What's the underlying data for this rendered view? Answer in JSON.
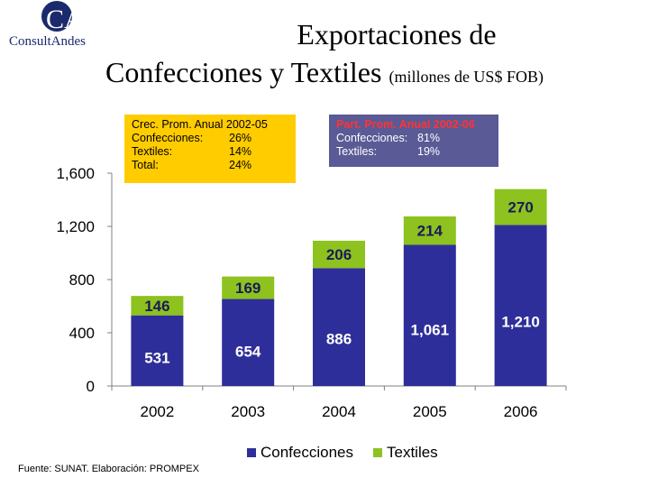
{
  "logo": {
    "initials": "CA",
    "name": "ConsultAndes"
  },
  "title": {
    "line1": "Exportaciones de",
    "line2": "Confecciones y Textiles",
    "line2_small": "(millones de US$ FOB)"
  },
  "growth_box": {
    "heading": "Crec. Prom. Anual 2002-05",
    "rows": [
      {
        "label": "Confecciones:",
        "value": "26%"
      },
      {
        "label": "Textiles:",
        "value": "14%"
      },
      {
        "label": "Total:",
        "value": "24%"
      }
    ],
    "color": "#ffcc00"
  },
  "share_box": {
    "heading": "Part. Prom. Anual 2002-06",
    "rows": [
      {
        "label": "Confecciones:",
        "value": "81%"
      },
      {
        "label": "Textiles:",
        "value": "19%"
      }
    ],
    "color": "#5a5a96"
  },
  "source": "Fuente: SUNAT.  Elaboración: PROMPEX",
  "chart_data": {
    "type": "bar",
    "stacked": true,
    "categories": [
      "2002",
      "2003",
      "2004",
      "2005",
      "2006"
    ],
    "series": [
      {
        "name": "Confecciones",
        "values": [
          531,
          654,
          886,
          1061,
          1210
        ],
        "labels": [
          "531",
          "654",
          "886",
          "1,061",
          "1,210"
        ],
        "color": "#2e2e9a",
        "label_color": "#ffffff"
      },
      {
        "name": "Textiles",
        "values": [
          146,
          169,
          206,
          214,
          270
        ],
        "labels": [
          "146",
          "169",
          "206",
          "214",
          "270"
        ],
        "color": "#8dc21f",
        "label_color": "#1a1a5a"
      }
    ],
    "yticks": [
      0,
      400,
      800,
      1200,
      1600
    ],
    "ytick_labels": [
      "0",
      "400",
      "800",
      "1,200",
      "1,600"
    ],
    "ylim": [
      0,
      1600
    ],
    "legend": "bottom",
    "grid": false
  }
}
